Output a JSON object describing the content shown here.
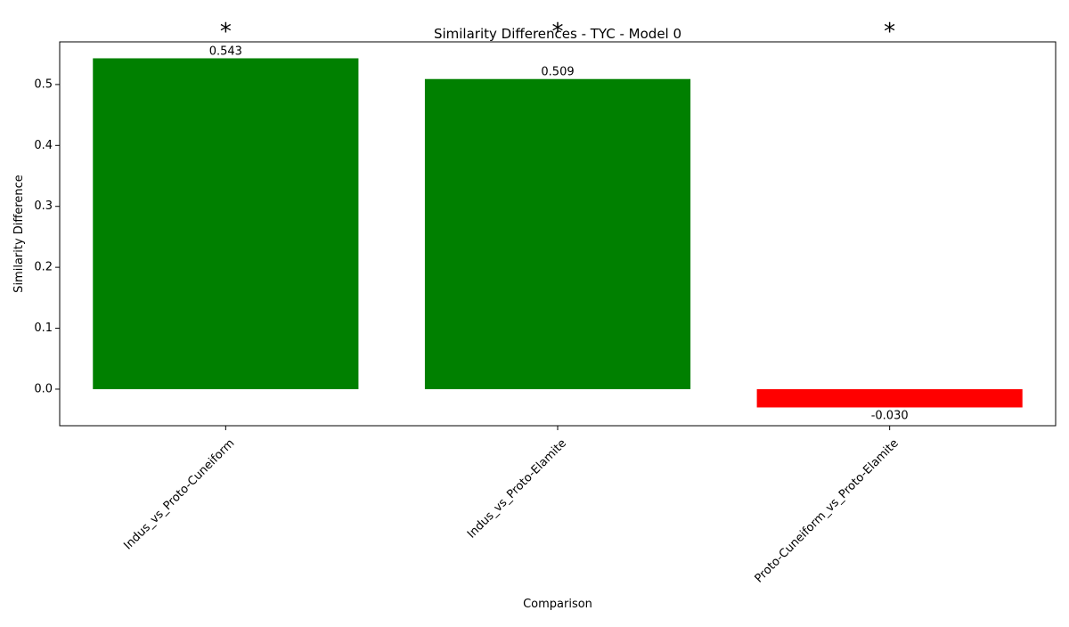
{
  "chart_data": {
    "type": "bar",
    "title": "Similarity Differences - TYC - Model 0",
    "xlabel": "Comparison",
    "ylabel": "Similarity Difference",
    "categories": [
      "Indus_vs_Proto-Cuneiform",
      "Indus_vs_Proto-Elamite",
      "Proto-Cuneiform_vs_Proto-Elamite"
    ],
    "values": [
      0.543,
      0.509,
      -0.03
    ],
    "value_labels": [
      "0.543",
      "0.509",
      "-0.030"
    ],
    "bar_colors": [
      "#008000",
      "#008000",
      "#ff0000"
    ],
    "significance_markers": [
      "*",
      "*",
      "*"
    ],
    "ylim": [
      -0.06,
      0.57
    ],
    "yticks": [
      0.0,
      0.1,
      0.2,
      0.3,
      0.4,
      0.5
    ],
    "ytick_labels": [
      "0.0",
      "0.1",
      "0.2",
      "0.3",
      "0.4",
      "0.5"
    ],
    "grid": false,
    "legend": "none"
  }
}
